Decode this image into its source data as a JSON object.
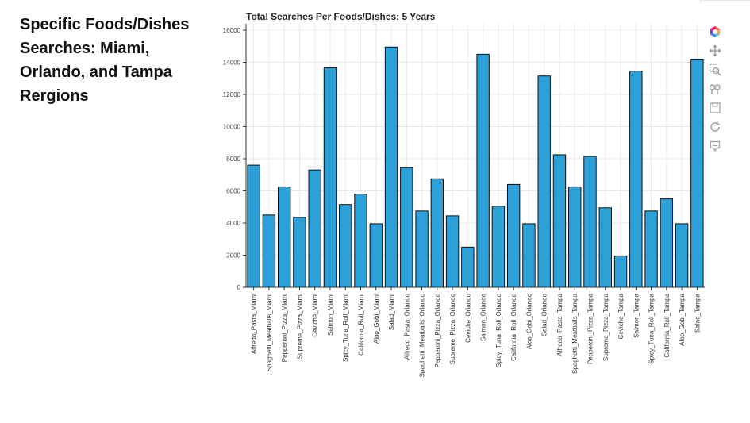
{
  "page": {
    "heading": "Specific Foods/Dishes Searches: Miami, Orlando, and Tampa Rergions"
  },
  "toolbar": {
    "items": [
      {
        "name": "bokeh-logo-icon"
      },
      {
        "name": "pan-icon"
      },
      {
        "name": "box-zoom-icon"
      },
      {
        "name": "wheel-zoom-icon"
      },
      {
        "name": "save-icon"
      },
      {
        "name": "reset-icon"
      },
      {
        "name": "hover-icon"
      }
    ]
  },
  "colors": {
    "bar_fill": "#2ea0d8",
    "bar_stroke": "#111111",
    "grid": "#e8e8e8",
    "axis": "#333333",
    "logo": [
      "#e4572e",
      "#f4a259",
      "#5bc0be",
      "#3a86ff",
      "#8338ec",
      "#ff006e"
    ]
  },
  "chart_data": {
    "type": "bar",
    "title": "Total Searches Per Foods/Dishes: 5 Years",
    "xlabel": "",
    "ylabel": "",
    "ylim": [
      0,
      16000
    ],
    "yticks": [
      0,
      2000,
      4000,
      6000,
      8000,
      10000,
      12000,
      14000,
      16000
    ],
    "grid": true,
    "categories": [
      "Alfredo_Pasta_Miami",
      "Spaghetti_Meatballs_Miami",
      "Pepperoni_Pizza_Miami",
      "Supreme_Pizza_Miami",
      "Ceviche_Miami",
      "Salmon_Miami",
      "Spicy_Tuna_Roll_Miami",
      "California_Roll_Miami",
      "Aloo_Gobi_Miami",
      "Salad_Miami",
      "Alfredo_Pasta_Orlando",
      "Spaghetti_Meatballs_Orlando",
      "Pepperoni_Pizza_Orlando",
      "Supreme_Pizza_Orlando",
      "Ceviche_Orlando",
      "Salmon_Orlando",
      "Spicy_Tuna_Roll_Orlando",
      "California_Roll_Orlando",
      "Aloo_Gobi_Orlando",
      "Salad_Orlando",
      "Alfredo_Pasta_Tampa",
      "Spaghetti_Meatballs_Tampa",
      "Pepperoni_Pizza_Tampa",
      "Supreme_Pizza_Tampa",
      "Ceviche_Tampa",
      "Salmon_Tampa",
      "Spicy_Tuna_Roll_Tampa",
      "California_Roll_Tampa",
      "Aloo_Gobi_Tampa",
      "Salad_Tampa"
    ],
    "values": [
      7600,
      4500,
      6250,
      4350,
      7300,
      13650,
      5150,
      5800,
      3950,
      14950,
      7450,
      4750,
      6750,
      4450,
      2500,
      14500,
      5050,
      6400,
      3950,
      13150,
      8250,
      6250,
      8150,
      4950,
      1950,
      13450,
      4750,
      5500,
      3950,
      14200
    ]
  }
}
